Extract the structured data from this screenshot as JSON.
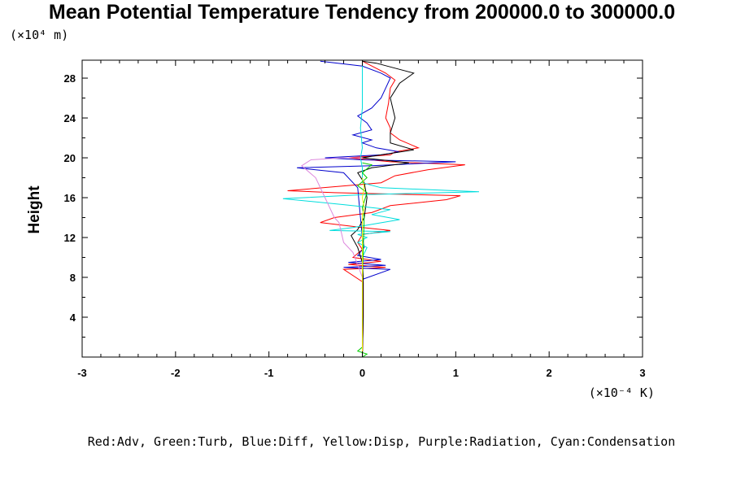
{
  "chart_data": {
    "type": "line",
    "title": "Mean Potential Temperature Tendency from 200000.0 to 300000.0",
    "ylabel": "Height",
    "xlabel": "",
    "y_unit": "(×10⁴ m)",
    "x_unit": "(×10⁻⁴ K)",
    "footnote": "Red:Adv, Green:Turb, Blue:Diff, Yellow:Disp, Purple:Radiation, Cyan:Condensation",
    "xlim": [
      -3,
      3
    ],
    "ylim": [
      0,
      29.8
    ],
    "x_ticks": [
      "-3",
      "-2",
      "-1",
      "0",
      "1",
      "2",
      "3"
    ],
    "x_tick_values": [
      -3,
      -2,
      -1,
      0,
      1,
      2,
      3
    ],
    "y_ticks": [
      "4",
      "8",
      "12",
      "16",
      "20",
      "24",
      "28"
    ],
    "y_tick_values": [
      4,
      8,
      12,
      16,
      20,
      24,
      28
    ],
    "legend": "none",
    "grid": false,
    "series": [
      {
        "color": "#ff0000",
        "points": [
          [
            0,
            0
          ],
          [
            0.01,
            4
          ],
          [
            0.01,
            7.5
          ],
          [
            -0.2,
            8.8
          ],
          [
            0.25,
            9.0
          ],
          [
            -0.15,
            9.3
          ],
          [
            0.2,
            9.6
          ],
          [
            -0.1,
            10.0
          ],
          [
            0,
            10.8
          ],
          [
            -0.05,
            11.5
          ],
          [
            0,
            12.3
          ],
          [
            0.3,
            12.7
          ],
          [
            0,
            13.0
          ],
          [
            -0.45,
            13.5
          ],
          [
            -0.3,
            14.0
          ],
          [
            0.1,
            14.5
          ],
          [
            0.3,
            15.2
          ],
          [
            0.9,
            15.8
          ],
          [
            1.05,
            16.2
          ],
          [
            -0.3,
            16.5
          ],
          [
            -0.8,
            16.7
          ],
          [
            0.2,
            17.5
          ],
          [
            0.35,
            18.2
          ],
          [
            0.7,
            18.8
          ],
          [
            1.1,
            19.3
          ],
          [
            0.3,
            19.6
          ],
          [
            -0.15,
            20.0
          ],
          [
            0.3,
            20.3
          ],
          [
            0.35,
            20.6
          ],
          [
            0.6,
            21.0
          ],
          [
            0.4,
            21.8
          ],
          [
            0.3,
            22.5
          ],
          [
            0.3,
            23.0
          ],
          [
            0.25,
            24.0
          ],
          [
            0.28,
            25.5
          ],
          [
            0.3,
            27.0
          ],
          [
            0.35,
            27.8
          ],
          [
            0.25,
            28.5
          ],
          [
            0,
            29.7
          ]
        ]
      },
      {
        "color": "#0000cc",
        "points": [
          [
            0,
            0
          ],
          [
            0,
            4
          ],
          [
            0,
            7.8
          ],
          [
            0.3,
            8.8
          ],
          [
            -0.2,
            9.0
          ],
          [
            0.25,
            9.2
          ],
          [
            -0.15,
            9.5
          ],
          [
            0.2,
            9.8
          ],
          [
            -0.05,
            10.2
          ],
          [
            0.02,
            11.0
          ],
          [
            0,
            12.0
          ],
          [
            -0.02,
            14.0
          ],
          [
            -0.05,
            17.0
          ],
          [
            -0.2,
            18.5
          ],
          [
            -0.7,
            19.0
          ],
          [
            0.1,
            19.2
          ],
          [
            1.0,
            19.6
          ],
          [
            0,
            19.8
          ],
          [
            -0.4,
            20.0
          ],
          [
            0.2,
            20.3
          ],
          [
            0.4,
            20.6
          ],
          [
            0.15,
            21.0
          ],
          [
            0,
            21.5
          ],
          [
            0.1,
            21.8
          ],
          [
            -0.1,
            22.3
          ],
          [
            0.1,
            22.8
          ],
          [
            0.05,
            23.5
          ],
          [
            -0.05,
            24.2
          ],
          [
            0.1,
            25.0
          ],
          [
            0.2,
            26.0
          ],
          [
            0.25,
            27.0
          ],
          [
            0.3,
            28.0
          ],
          [
            0.2,
            28.5
          ],
          [
            0,
            29.2
          ],
          [
            -0.45,
            29.7
          ]
        ]
      },
      {
        "color": "#000000",
        "points": [
          [
            0,
            0
          ],
          [
            0.01,
            4
          ],
          [
            0.01,
            8
          ],
          [
            0,
            9.5
          ],
          [
            -0.05,
            11.0
          ],
          [
            -0.12,
            12.2
          ],
          [
            -0.05,
            12.8
          ],
          [
            0.02,
            14.0
          ],
          [
            0.05,
            16.0
          ],
          [
            0.02,
            17.5
          ],
          [
            -0.05,
            18.5
          ],
          [
            0.1,
            19.0
          ],
          [
            0.5,
            19.5
          ],
          [
            0,
            20.0
          ],
          [
            0.2,
            20.3
          ],
          [
            0.55,
            20.8
          ],
          [
            0.3,
            21.5
          ],
          [
            0.3,
            22.5
          ],
          [
            0.35,
            24.0
          ],
          [
            0.3,
            26.0
          ],
          [
            0.4,
            27.5
          ],
          [
            0.55,
            28.5
          ],
          [
            0.35,
            29.0
          ],
          [
            0.15,
            29.5
          ],
          [
            0,
            29.7
          ]
        ]
      },
      {
        "color": "#00dddd",
        "points": [
          [
            0,
            0
          ],
          [
            0,
            4
          ],
          [
            0,
            8
          ],
          [
            0,
            10
          ],
          [
            0.05,
            11.0
          ],
          [
            -0.05,
            11.5
          ],
          [
            0.05,
            12.0
          ],
          [
            -0.05,
            12.3
          ],
          [
            0.3,
            12.6
          ],
          [
            -0.35,
            12.7
          ],
          [
            -0.1,
            13.0
          ],
          [
            0.4,
            13.8
          ],
          [
            0.1,
            14.3
          ],
          [
            0.3,
            14.8
          ],
          [
            -0.2,
            15.3
          ],
          [
            -0.85,
            15.9
          ],
          [
            0,
            16.3
          ],
          [
            1.25,
            16.6
          ],
          [
            0.2,
            17.0
          ],
          [
            0,
            17.5
          ],
          [
            0,
            18.5
          ],
          [
            0,
            19.0
          ],
          [
            -0.02,
            20.0
          ],
          [
            0,
            21.0
          ],
          [
            -0.02,
            23.0
          ],
          [
            0,
            25.0
          ],
          [
            0,
            27.0
          ],
          [
            0,
            28.0
          ],
          [
            0,
            29.7
          ]
        ]
      },
      {
        "color": "#dd88dd",
        "points": [
          [
            0,
            0
          ],
          [
            0,
            4
          ],
          [
            0,
            8
          ],
          [
            -0.1,
            10.5
          ],
          [
            -0.2,
            11.5
          ],
          [
            -0.25,
            13.5
          ],
          [
            -0.3,
            14.0
          ],
          [
            -0.4,
            16.0
          ],
          [
            -0.5,
            18.0
          ],
          [
            -0.65,
            19.2
          ],
          [
            -0.55,
            19.8
          ],
          [
            -0.2,
            20.0
          ],
          [
            0,
            20.0
          ]
        ]
      },
      {
        "color": "#00cc00",
        "points": [
          [
            0,
            0
          ],
          [
            0.05,
            0.3
          ],
          [
            -0.05,
            0.6
          ],
          [
            0,
            1.0
          ],
          [
            0,
            8
          ],
          [
            0.02,
            14.0
          ],
          [
            0,
            15.0
          ],
          [
            0.05,
            16.5
          ],
          [
            -0.05,
            17.2
          ],
          [
            0.05,
            18.0
          ],
          [
            0,
            18.5
          ],
          [
            0.1,
            19.3
          ],
          [
            0,
            19.5
          ]
        ]
      },
      {
        "color": "#eeee00",
        "points": [
          [
            0,
            0
          ],
          [
            0,
            8
          ],
          [
            0,
            14.2
          ],
          [
            0.02,
            15.0
          ],
          [
            0,
            16.0
          ],
          [
            0.02,
            17.0
          ],
          [
            0,
            18.0
          ]
        ]
      }
    ]
  }
}
